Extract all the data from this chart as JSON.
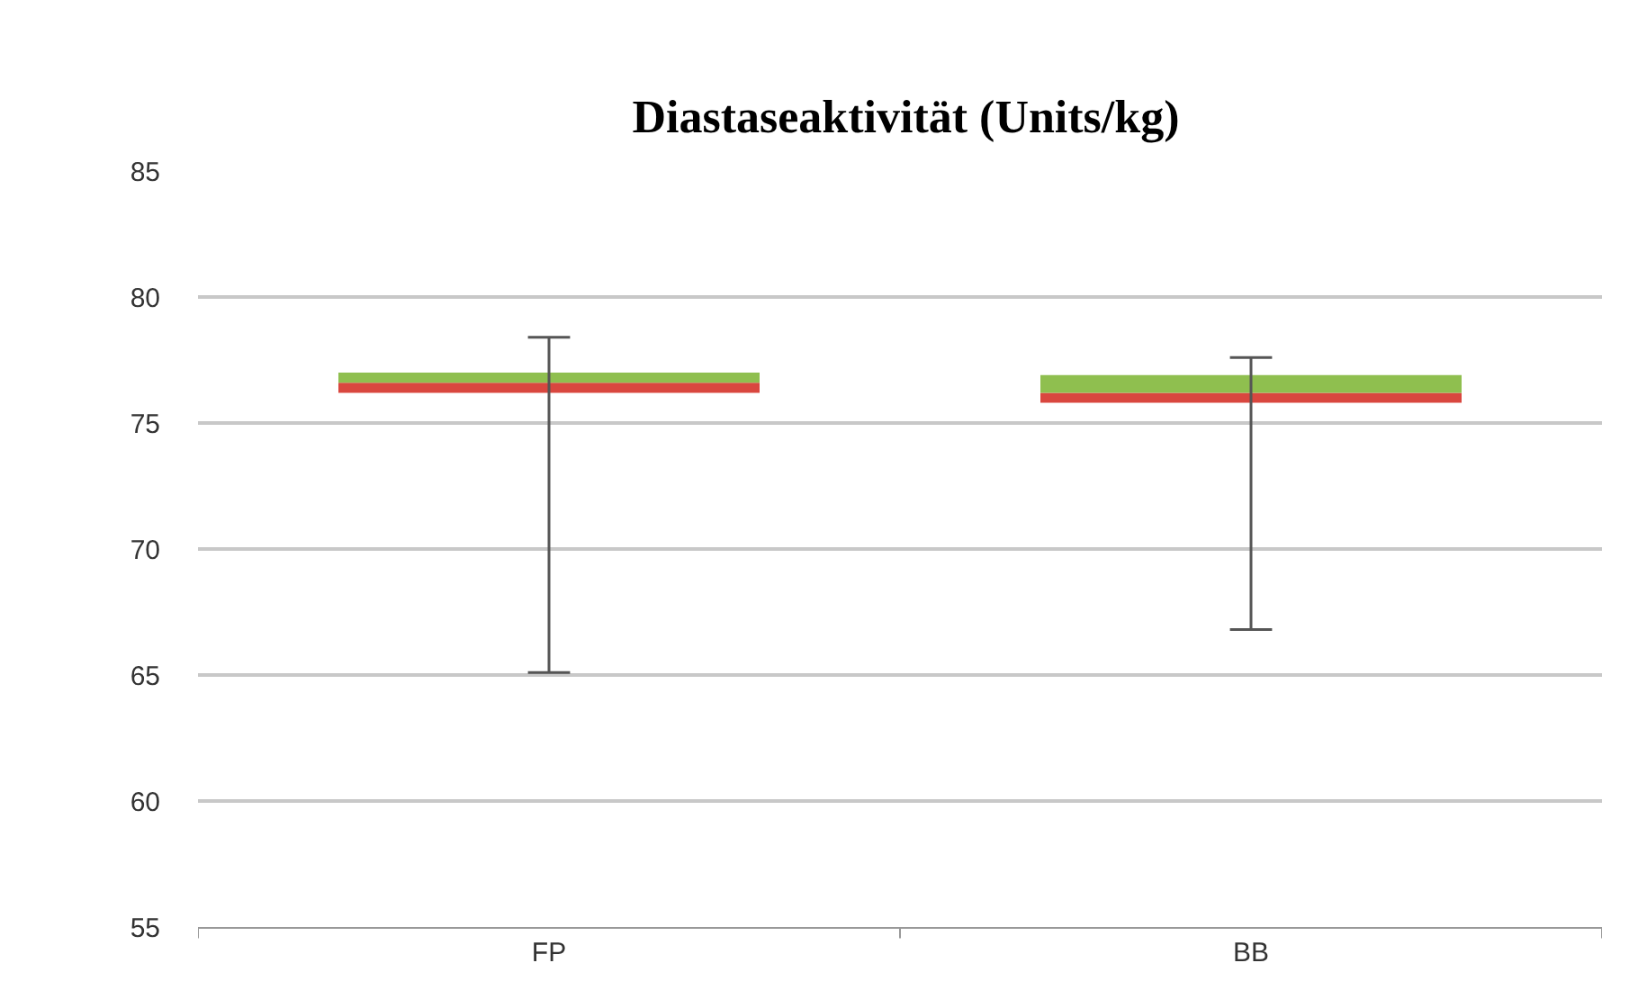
{
  "chart_data": {
    "type": "box",
    "title": "Diastaseaktivität (Units/kg)",
    "categories": [
      "FP",
      "BB"
    ],
    "boxes": [
      {
        "low": 65.1,
        "q1": 76.2,
        "median": 76.6,
        "q3": 77.0,
        "high": 78.4
      },
      {
        "low": 66.8,
        "q1": 75.8,
        "median": 76.2,
        "q3": 76.9,
        "high": 77.6
      }
    ],
    "ylim": [
      55,
      85
    ],
    "yticks": [
      55,
      60,
      65,
      70,
      75,
      80,
      85
    ],
    "grid": "y"
  }
}
